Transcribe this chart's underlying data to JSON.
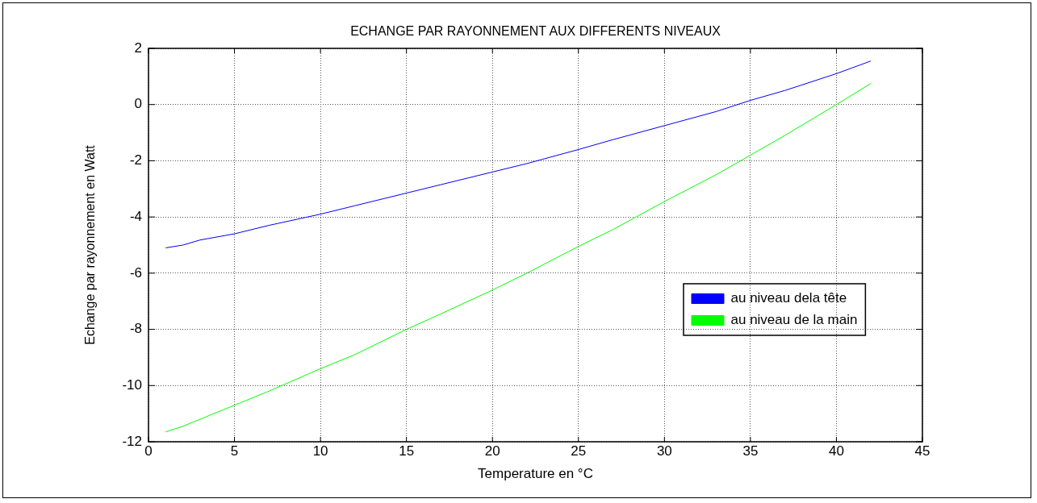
{
  "chart_data": {
    "type": "line",
    "title": "ECHANGE PAR RAYONNEMENT AUX DIFFERENTS NIVEAUX",
    "xlabel": "Temperature en °C",
    "ylabel": "Echange par rayonnement en Watt",
    "x": [
      1,
      2,
      3,
      5,
      7,
      10,
      12,
      15,
      17,
      20,
      22,
      25,
      27,
      30,
      33,
      35,
      37,
      40,
      42
    ],
    "series": [
      {
        "name": "au niveau dela tête",
        "color": "#0000ff",
        "values": [
          -5.1,
          -5.0,
          -4.82,
          -4.6,
          -4.3,
          -3.9,
          -3.6,
          -3.15,
          -2.85,
          -2.4,
          -2.1,
          -1.6,
          -1.25,
          -0.75,
          -0.25,
          0.15,
          0.5,
          1.1,
          1.55
        ]
      },
      {
        "name": "au niveau de la main",
        "color": "#00ff00",
        "values": [
          -11.65,
          -11.45,
          -11.2,
          -10.7,
          -10.2,
          -9.4,
          -8.9,
          -8.0,
          -7.45,
          -6.6,
          -6.0,
          -5.05,
          -4.45,
          -3.45,
          -2.5,
          -1.8,
          -1.1,
          0,
          0.75
        ]
      }
    ],
    "xlim": [
      0,
      45
    ],
    "xticks": [
      0,
      5,
      10,
      15,
      20,
      25,
      30,
      35,
      40,
      45
    ],
    "ylim": [
      -12,
      2
    ],
    "yticks": [
      -12,
      -10,
      -8,
      -6,
      -4,
      -2,
      0,
      2
    ],
    "grid": true,
    "legend": "right",
    "marker": "none",
    "line_style": "solid"
  }
}
